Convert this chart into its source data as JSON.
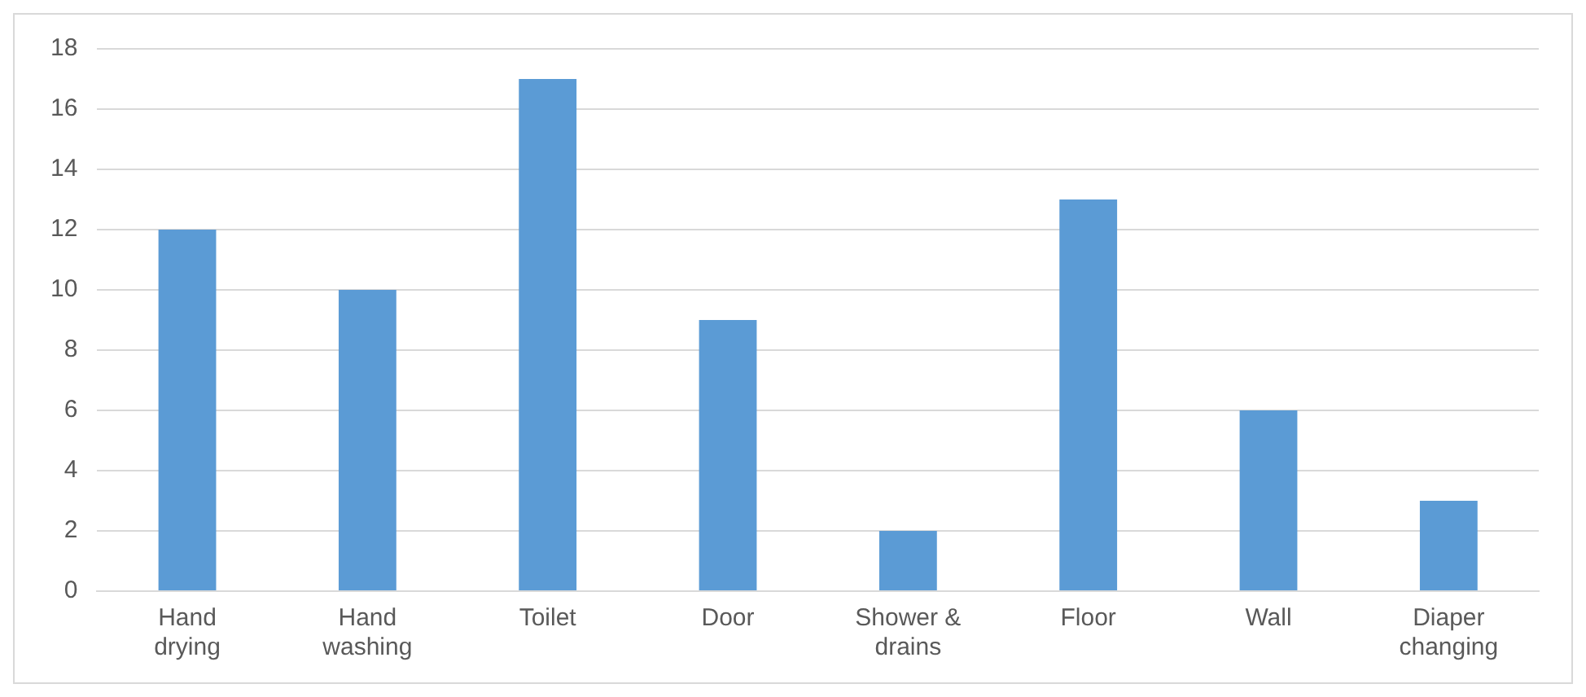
{
  "chart_data": {
    "type": "bar",
    "categories": [
      "Hand drying",
      "Hand washing",
      "Toilet",
      "Door",
      "Shower & drains",
      "Floor",
      "Wall",
      "Diaper changing"
    ],
    "values": [
      12,
      10,
      17,
      9,
      2,
      13,
      6,
      3
    ],
    "color": "#5b9bd5",
    "ylim": [
      0,
      18
    ],
    "yticks": [
      0,
      2,
      4,
      6,
      8,
      10,
      12,
      14,
      16,
      18
    ],
    "grid": "y",
    "legend": false
  }
}
